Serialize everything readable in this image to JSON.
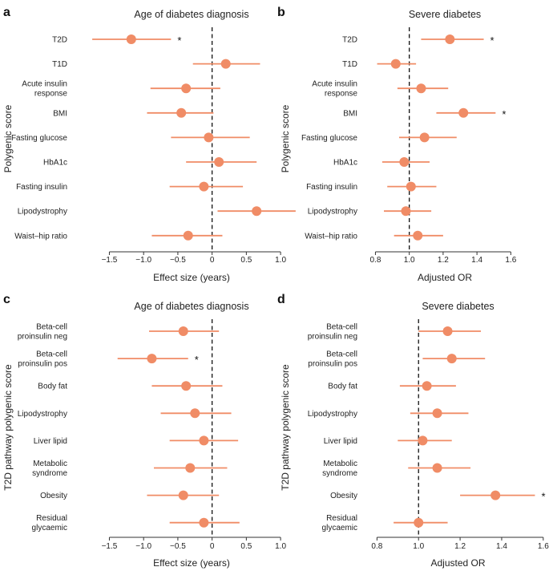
{
  "colors": {
    "marker": "#f08c66",
    "line": "#f08c66",
    "axis": "#333333",
    "ref": "#111111"
  },
  "chart_data": [
    {
      "panel": "a",
      "type": "forest",
      "title": "Age of diabetes diagnosis",
      "xlabel": "Effect size (years)",
      "ylabel": "Polygenic score",
      "xlim": [
        -1.95,
        1.35
      ],
      "ticks": [
        -1.5,
        -1.0,
        -0.5,
        0,
        0.5,
        1.0
      ],
      "tick_labels": [
        "−1.5",
        "−1.0",
        "−0.5",
        "0",
        "0.5",
        "1.0"
      ],
      "ref": 0,
      "rows": [
        {
          "label": [
            "T2D"
          ],
          "est": -1.18,
          "lo": -1.75,
          "hi": -0.6,
          "star": true
        },
        {
          "label": [
            "T1D"
          ],
          "est": 0.2,
          "lo": -0.28,
          "hi": 0.7
        },
        {
          "label": [
            "Acute insulin",
            "response"
          ],
          "est": -0.38,
          "lo": -0.9,
          "hi": 0.12
        },
        {
          "label": [
            "BMI"
          ],
          "est": -0.45,
          "lo": -0.95,
          "hi": 0.02
        },
        {
          "label": [
            "Fasting glucose"
          ],
          "est": -0.05,
          "lo": -0.6,
          "hi": 0.55
        },
        {
          "label": [
            "HbA1c"
          ],
          "est": 0.1,
          "lo": -0.38,
          "hi": 0.65
        },
        {
          "label": [
            "Fasting insulin"
          ],
          "est": -0.12,
          "lo": -0.62,
          "hi": 0.45
        },
        {
          "label": [
            "Lipodystrophy"
          ],
          "est": 0.65,
          "lo": 0.08,
          "hi": 1.22
        },
        {
          "label": [
            "Waist–hip ratio"
          ],
          "est": -0.35,
          "lo": -0.88,
          "hi": 0.15
        }
      ]
    },
    {
      "panel": "b",
      "type": "forest",
      "title": "Severe diabetes",
      "xlabel": "Adjusted OR",
      "ylabel": "Polygenic score",
      "xlim": [
        0.76,
        1.66
      ],
      "ticks": [
        0.8,
        1.0,
        1.2,
        1.4,
        1.6
      ],
      "tick_labels": [
        "0.8",
        "1.0",
        "1.2",
        "1.4",
        "1.6"
      ],
      "ref": 1.0,
      "rows": [
        {
          "label": [
            "T2D"
          ],
          "est": 1.24,
          "lo": 1.07,
          "hi": 1.44,
          "star": true
        },
        {
          "label": [
            "T1D"
          ],
          "est": 0.92,
          "lo": 0.81,
          "hi": 1.04
        },
        {
          "label": [
            "Acute insulin",
            "response"
          ],
          "est": 1.07,
          "lo": 0.93,
          "hi": 1.23
        },
        {
          "label": [
            "BMI"
          ],
          "est": 1.32,
          "lo": 1.16,
          "hi": 1.51,
          "star": true
        },
        {
          "label": [
            "Fasting glucose"
          ],
          "est": 1.09,
          "lo": 0.94,
          "hi": 1.28
        },
        {
          "label": [
            "HbA1c"
          ],
          "est": 0.97,
          "lo": 0.84,
          "hi": 1.12
        },
        {
          "label": [
            "Fasting insulin"
          ],
          "est": 1.01,
          "lo": 0.87,
          "hi": 1.16
        },
        {
          "label": [
            "Lipodystrophy"
          ],
          "est": 0.98,
          "lo": 0.85,
          "hi": 1.13
        },
        {
          "label": [
            "Waist–hip ratio"
          ],
          "est": 1.05,
          "lo": 0.91,
          "hi": 1.2
        }
      ]
    },
    {
      "panel": "c",
      "type": "forest",
      "title": "Age of diabetes diagnosis",
      "xlabel": "Effect size (years)",
      "ylabel": "T2D pathway polygenic score",
      "xlim": [
        -1.95,
        1.35
      ],
      "ticks": [
        -1.5,
        -1.0,
        -0.5,
        0,
        0.5,
        1.0
      ],
      "tick_labels": [
        "−1.5",
        "−1.0",
        "−0.5",
        "0",
        "0.5",
        "1.0"
      ],
      "ref": 0,
      "rows": [
        {
          "label": [
            "Beta-cell",
            "proinsulin neg"
          ],
          "est": -0.42,
          "lo": -0.92,
          "hi": 0.1
        },
        {
          "label": [
            "Beta-cell",
            "proinsulin pos"
          ],
          "est": -0.88,
          "lo": -1.38,
          "hi": -0.35,
          "star": true
        },
        {
          "label": [
            "Body fat"
          ],
          "est": -0.38,
          "lo": -0.88,
          "hi": 0.15
        },
        {
          "label": [
            "Lipodystrophy"
          ],
          "est": -0.25,
          "lo": -0.75,
          "hi": 0.28
        },
        {
          "label": [
            "Liver lipid"
          ],
          "est": -0.12,
          "lo": -0.62,
          "hi": 0.38
        },
        {
          "label": [
            "Metabolic",
            "syndrome"
          ],
          "est": -0.32,
          "lo": -0.85,
          "hi": 0.22
        },
        {
          "label": [
            "Obesity"
          ],
          "est": -0.42,
          "lo": -0.95,
          "hi": 0.1
        },
        {
          "label": [
            "Residual",
            "glycaemic"
          ],
          "est": -0.12,
          "lo": -0.62,
          "hi": 0.4
        }
      ]
    },
    {
      "panel": "d",
      "type": "forest",
      "title": "Severe diabetes",
      "xlabel": "Adjusted OR",
      "ylabel": "T2D pathway polygenic score",
      "xlim": [
        0.76,
        1.62
      ],
      "ticks": [
        0.8,
        1.0,
        1.2,
        1.4,
        1.6
      ],
      "tick_labels": [
        "0.8",
        "1.0",
        "1.2",
        "1.4",
        "1.6"
      ],
      "ref": 1.0,
      "rows": [
        {
          "label": [
            "Beta-cell",
            "proinsulin neg"
          ],
          "est": 1.14,
          "lo": 1.0,
          "hi": 1.3
        },
        {
          "label": [
            "Beta-cell",
            "proinsulin pos"
          ],
          "est": 1.16,
          "lo": 1.02,
          "hi": 1.32
        },
        {
          "label": [
            "Body fat"
          ],
          "est": 1.04,
          "lo": 0.91,
          "hi": 1.18
        },
        {
          "label": [
            "Lipodystrophy"
          ],
          "est": 1.09,
          "lo": 0.96,
          "hi": 1.24
        },
        {
          "label": [
            "Liver lipid"
          ],
          "est": 1.02,
          "lo": 0.9,
          "hi": 1.16
        },
        {
          "label": [
            "Metabolic",
            "syndrome"
          ],
          "est": 1.09,
          "lo": 0.95,
          "hi": 1.25
        },
        {
          "label": [
            "Obesity"
          ],
          "est": 1.37,
          "lo": 1.2,
          "hi": 1.56,
          "star": true
        },
        {
          "label": [
            "Residual",
            "glycaemic"
          ],
          "est": 1.0,
          "lo": 0.88,
          "hi": 1.14
        }
      ]
    }
  ],
  "star_symbol": "*"
}
